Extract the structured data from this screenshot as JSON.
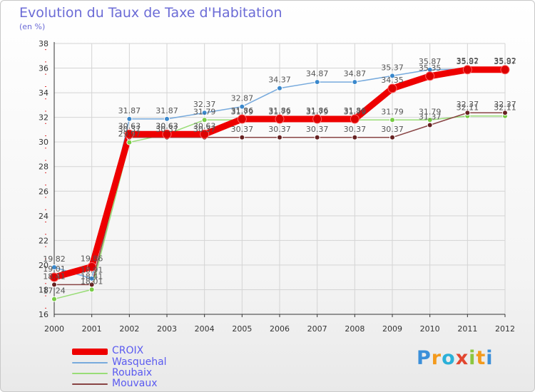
{
  "chart_data": {
    "type": "line",
    "title": "Evolution du Taux de Taxe d'Habitation",
    "ylabel": "(en %)",
    "xlabel": "",
    "ylim": [
      16,
      38
    ],
    "yticks": [
      "16",
      "18",
      "20",
      "22",
      "24",
      "26",
      "28",
      "30",
      "32",
      "34",
      "36",
      "38"
    ],
    "categories": [
      "2000",
      "2001",
      "2002",
      "2003",
      "2004",
      "2005",
      "2006",
      "2007",
      "2008",
      "2009",
      "2010",
      "2011",
      "2012"
    ],
    "series": [
      {
        "name": "Wasquehal",
        "color": "#77aadd",
        "marker": "#3a88cc",
        "values": [
          19.82,
          18.91,
          31.87,
          31.87,
          32.37,
          32.87,
          34.37,
          34.87,
          34.87,
          35.37,
          35.87,
          35.92,
          35.92
        ],
        "labels": [
          "19.82",
          "18.91",
          "31.87",
          "31.87",
          "32.37",
          "32.87",
          "34.37",
          "34.87",
          "34.87",
          "35.37",
          "35.87",
          "35.92",
          "35.92"
        ]
      },
      {
        "name": "Roubaix",
        "color": "#99dd77",
        "marker": "#77cc44",
        "values": [
          17.24,
          18.01,
          29.97,
          30.63,
          31.79,
          31.79,
          31.79,
          31.79,
          31.79,
          31.79,
          31.79,
          32.11,
          32.11
        ],
        "labels": [
          "17.24",
          "18.01",
          "29.97",
          "30.63",
          "31.79",
          "31.79",
          "31.79",
          "31.79",
          "31.79",
          "31.79",
          "31.79",
          "32.11",
          "32.11"
        ]
      },
      {
        "name": "Mouvaux",
        "color": "#884444",
        "marker": "#662222",
        "values": [
          18.41,
          18.41,
          30.37,
          30.37,
          30.37,
          30.37,
          30.37,
          30.37,
          30.37,
          30.37,
          31.37,
          32.37,
          32.37
        ],
        "labels": [
          "18.41",
          "18.41",
          "30.37",
          "30.37",
          "30.37",
          "30.37",
          "30.37",
          "30.37",
          "30.37",
          "30.37",
          "31.37",
          "32.37",
          "32.37"
        ]
      },
      {
        "name": "CROIX",
        "color": "#ee0000",
        "marker": "#dd0000",
        "values": [
          19.01,
          19.86,
          30.63,
          30.63,
          30.63,
          31.86,
          31.86,
          31.86,
          31.86,
          34.35,
          35.35,
          35.87,
          35.87
        ],
        "labels": [
          "19.01",
          "19.86",
          "30.63",
          "30.63",
          "30.63",
          "31.86",
          "31.86",
          "31.86",
          "31.86",
          "34.35",
          "35.35",
          "35.87",
          "35.87"
        ]
      }
    ],
    "legend": [
      "CROIX",
      "Wasquehal",
      "Roubaix",
      "Mouvaux"
    ]
  },
  "logo": {
    "letters": [
      "P",
      "r",
      "o",
      "x",
      "i",
      "t",
      "i"
    ],
    "colors": [
      "#3b8fd9",
      "#f39a1d",
      "#2bb0d8",
      "#e2462f",
      "#8cc63f",
      "#f39a1d",
      "#3b8fd9"
    ]
  }
}
